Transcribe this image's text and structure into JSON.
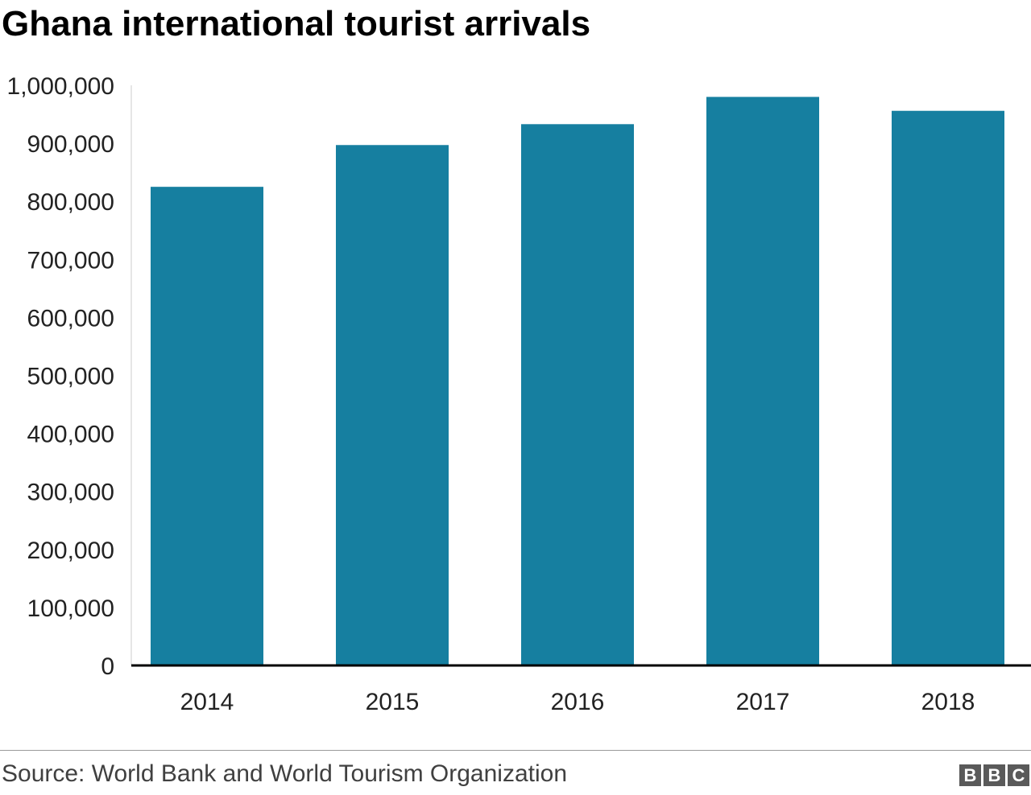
{
  "chart_data": {
    "type": "bar",
    "title": "Ghana international tourist arrivals",
    "xlabel": "",
    "ylabel": "",
    "categories": [
      "2014",
      "2015",
      "2016",
      "2017",
      "2018"
    ],
    "values": [
      825000,
      897000,
      933000,
      980000,
      956000
    ],
    "ylim": [
      0,
      1000000
    ],
    "yticks": [
      0,
      100000,
      200000,
      300000,
      400000,
      500000,
      600000,
      700000,
      800000,
      900000,
      1000000
    ],
    "ytick_labels": [
      "0",
      "100,000",
      "200,000",
      "300,000",
      "400,000",
      "500,000",
      "600,000",
      "700,000",
      "800,000",
      "900,000",
      "1,000,000"
    ],
    "bar_color": "#167fa0",
    "grid": false,
    "legend": "none"
  },
  "footer": {
    "source": "Source: World Bank and World Tourism Organization",
    "logo": [
      "B",
      "B",
      "C"
    ]
  }
}
